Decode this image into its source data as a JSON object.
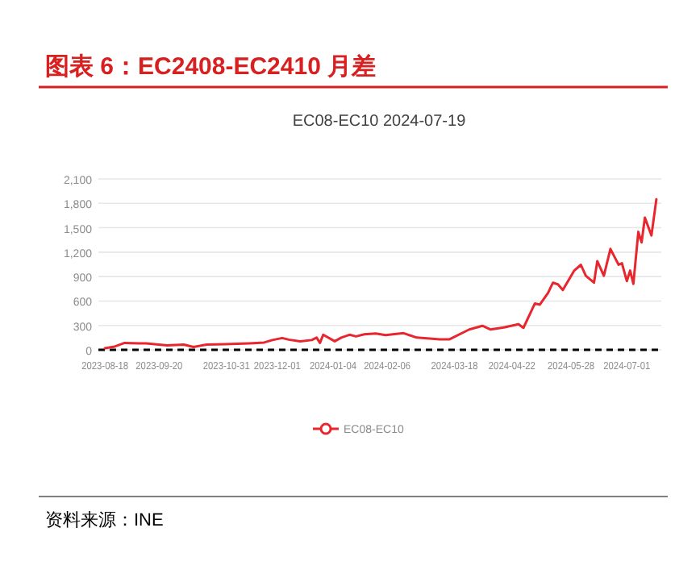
{
  "chart_data": {
    "type": "line",
    "title": "图表 6：EC2408-EC2410 月差",
    "subtitle": "EC08-EC10 2024-07-19",
    "annotations": [
      "资料来源：INE"
    ],
    "xlim": [
      "2023-08-14",
      "2024-07-22"
    ],
    "xticks": [
      {
        "value": "2023-08-18",
        "label": "2023-08-18"
      },
      {
        "value": "2023-09-20",
        "label": "2023-09-20"
      },
      {
        "value": "2023-10-31",
        "label": "2023-10-31"
      },
      {
        "value": "2023-12-01",
        "label": "2023-12-01"
      },
      {
        "value": "2024-01-04",
        "label": "2024-01-04"
      },
      {
        "value": "2024-02-06",
        "label": "2024-02-06"
      },
      {
        "value": "2024-03-18",
        "label": "2024-03-18"
      },
      {
        "value": "2024-04-22",
        "label": "2024-04-22"
      },
      {
        "value": "2024-05-28",
        "label": "2024-05-28"
      },
      {
        "value": "2024-07-01",
        "label": "2024-07-01"
      }
    ],
    "ylim": [
      0,
      2100
    ],
    "yticks": [
      {
        "value": 0,
        "label": "0"
      },
      {
        "value": 300,
        "label": "300"
      },
      {
        "value": 600,
        "label": "600"
      },
      {
        "value": 900,
        "label": "900"
      },
      {
        "value": 1200,
        "label": "1,200"
      },
      {
        "value": 1500,
        "label": "1,500"
      },
      {
        "value": 1800,
        "label": "1,800"
      },
      {
        "value": 2100,
        "label": "2,100"
      }
    ],
    "grid": "y",
    "legend": "bottom",
    "line_style": "solid",
    "ref_lines": [
      {
        "axis": "y",
        "value": 0,
        "color": "#000000",
        "line_style": "dashed"
      }
    ],
    "series": [
      {
        "name": "EC08-EC10",
        "color": "#e8262d",
        "x": [
          "2023-08-18",
          "2023-08-24",
          "2023-08-30",
          "2023-09-08",
          "2023-09-12",
          "2023-09-25",
          "2023-10-05",
          "2023-10-11",
          "2023-10-19",
          "2023-10-30",
          "2023-11-14",
          "2023-11-23",
          "2023-11-28",
          "2023-12-04",
          "2023-12-08",
          "2023-12-15",
          "2023-12-22",
          "2023-12-25",
          "2023-12-27",
          "2023-12-29",
          "2024-01-05",
          "2024-01-09",
          "2024-01-14",
          "2024-01-18",
          "2024-01-23",
          "2024-01-30",
          "2024-02-05",
          "2024-02-16",
          "2024-02-24",
          "2024-03-09",
          "2024-03-15",
          "2024-03-27",
          "2024-04-04",
          "2024-04-09",
          "2024-04-17",
          "2024-04-26",
          "2024-04-29",
          "2024-05-06",
          "2024-05-09",
          "2024-05-14",
          "2024-05-17",
          "2024-05-20",
          "2024-05-23",
          "2024-05-30",
          "2024-06-03",
          "2024-06-06",
          "2024-06-11",
          "2024-06-13",
          "2024-06-17",
          "2024-06-21",
          "2024-06-26",
          "2024-06-28",
          "2024-07-01",
          "2024-07-03",
          "2024-07-05",
          "2024-07-08",
          "2024-07-10",
          "2024-07-12",
          "2024-07-16",
          "2024-07-19"
        ],
        "values": [
          20,
          40,
          85,
          80,
          80,
          55,
          65,
          35,
          65,
          70,
          80,
          90,
          120,
          145,
          125,
          105,
          120,
          150,
          85,
          185,
          105,
          150,
          185,
          165,
          190,
          200,
          180,
          205,
          150,
          130,
          130,
          250,
          295,
          250,
          275,
          315,
          270,
          570,
          555,
          700,
          825,
          805,
          735,
          975,
          1045,
          910,
          825,
          1090,
          910,
          1240,
          1045,
          1065,
          845,
          975,
          810,
          1450,
          1320,
          1625,
          1405,
          1850
        ]
      }
    ]
  }
}
